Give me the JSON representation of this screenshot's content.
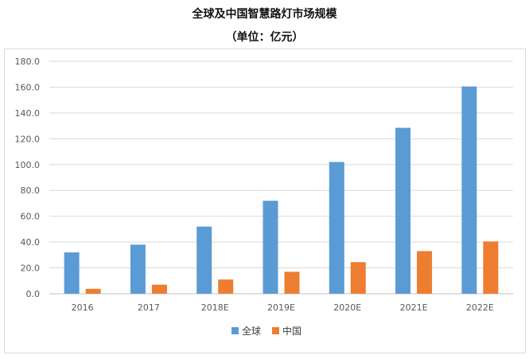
{
  "header": {
    "title": "全球及中国智慧路灯市场规模",
    "subtitle": "（单位：亿元）"
  },
  "colors": {
    "global": "#5B9BD5",
    "china": "#ED7D31",
    "grid": "#d9d9d9",
    "axis": "#bfbfbf"
  },
  "chart_data": {
    "type": "bar",
    "title": "全球及中国智慧路灯市场规模",
    "subtitle": "（单位：亿元）",
    "xlabel": "",
    "ylabel": "",
    "categories": [
      "2016",
      "2017",
      "2018E",
      "2019E",
      "2020E",
      "2021E",
      "2022E"
    ],
    "series": [
      {
        "name": "全球",
        "values": [
          32.0,
          38.0,
          52.0,
          72.0,
          102.0,
          128.5,
          160.5
        ]
      },
      {
        "name": "中国",
        "values": [
          3.8,
          7.0,
          11.0,
          17.0,
          24.5,
          33.0,
          40.5
        ]
      }
    ],
    "ylim": [
      0,
      180
    ],
    "yticks": [
      "0.0",
      "20.0",
      "40.0",
      "60.0",
      "80.0",
      "100.0",
      "120.0",
      "140.0",
      "160.0",
      "180.0"
    ],
    "grid": true,
    "legend": "bottom"
  }
}
